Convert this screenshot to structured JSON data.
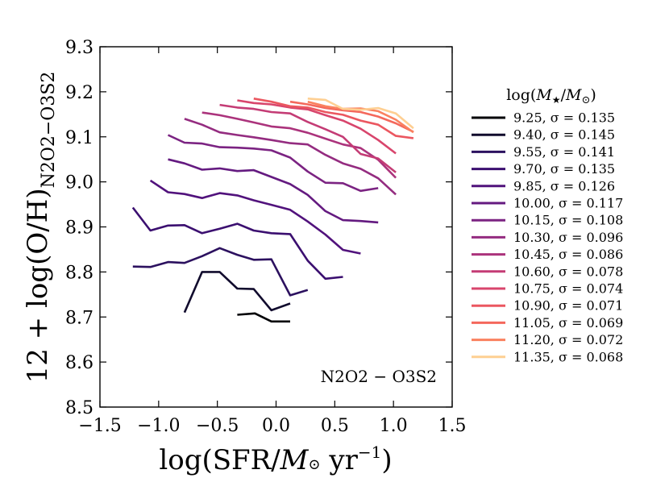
{
  "chart_data": {
    "type": "line",
    "title": "",
    "xlabel": "log(SFR/M⊙ yr⁻¹)",
    "ylabel": "12 + log(O/H)",
    "ylabel_subscript": "N2O2−O3S2",
    "xlim": [
      -1.5,
      1.5
    ],
    "ylim": [
      8.5,
      9.3
    ],
    "xticks": [
      "−1.5",
      "−1.0",
      "−0.5",
      "0.0",
      "0.5",
      "1.0",
      "1.5"
    ],
    "yticks": [
      "8.5",
      "8.6",
      "8.7",
      "8.8",
      "8.9",
      "9.0",
      "9.1",
      "9.2",
      "9.3"
    ],
    "annotation": "N2O2 − O3S2",
    "legend_title": "log(M★/M⊙)",
    "legend_position": "right",
    "series": [
      {
        "name": "9.25,  σ = 0.135",
        "color": "#000004",
        "x": [
          -0.33,
          -0.18,
          -0.04,
          0.12
        ],
        "y": [
          8.705,
          8.708,
          8.69,
          8.69
        ]
      },
      {
        "name": "9.40,  σ = 0.145",
        "color": "#110b2d",
        "x": [
          -0.78,
          -0.63,
          -0.48,
          -0.33,
          -0.19,
          -0.04,
          0.12
        ],
        "y": [
          8.71,
          8.8,
          8.8,
          8.763,
          8.762,
          8.715,
          8.73
        ]
      },
      {
        "name": "9.55,  σ = 0.141",
        "color": "#2c115f",
        "x": [
          -1.22,
          -1.07,
          -0.92,
          -0.78,
          -0.63,
          -0.48,
          -0.33,
          -0.19,
          -0.04,
          0.12,
          0.27
        ],
        "y": [
          8.812,
          8.811,
          8.822,
          8.82,
          8.835,
          8.853,
          8.838,
          8.827,
          8.828,
          8.748,
          8.76
        ]
      },
      {
        "name": "9.70,  σ = 0.135",
        "color": "#3b0f70",
        "x": [
          -1.22,
          -1.07,
          -0.92,
          -0.78,
          -0.63,
          -0.48,
          -0.33,
          -0.19,
          -0.04,
          0.12,
          0.27,
          0.42,
          0.57
        ],
        "y": [
          8.943,
          8.892,
          8.903,
          8.904,
          8.886,
          8.896,
          8.907,
          8.892,
          8.886,
          8.884,
          8.825,
          8.785,
          8.789
        ]
      },
      {
        "name": "9.85,  σ = 0.126",
        "color": "#51127c",
        "x": [
          -1.07,
          -0.92,
          -0.78,
          -0.63,
          -0.48,
          -0.33,
          -0.19,
          -0.04,
          0.12,
          0.27,
          0.42,
          0.57,
          0.72
        ],
        "y": [
          9.003,
          8.977,
          8.973,
          8.964,
          8.975,
          8.97,
          8.959,
          8.949,
          8.938,
          8.912,
          8.883,
          8.849,
          8.841
        ]
      },
      {
        "name": "10.00, σ = 0.117",
        "color": "#641a80",
        "x": [
          -0.92,
          -0.78,
          -0.63,
          -0.48,
          -0.33,
          -0.19,
          -0.04,
          0.12,
          0.27,
          0.42,
          0.57,
          0.72,
          0.87
        ],
        "y": [
          9.05,
          9.041,
          9.027,
          9.03,
          9.024,
          9.026,
          9.011,
          8.995,
          8.971,
          8.935,
          8.915,
          8.913,
          8.91
        ]
      },
      {
        "name": "10.15, σ = 0.108",
        "color": "#7b2382",
        "x": [
          -0.92,
          -0.78,
          -0.63,
          -0.48,
          -0.33,
          -0.19,
          -0.04,
          0.12,
          0.27,
          0.42,
          0.57,
          0.72,
          0.87
        ],
        "y": [
          9.104,
          9.087,
          9.085,
          9.077,
          9.076,
          9.074,
          9.07,
          9.054,
          9.023,
          8.998,
          8.997,
          8.98,
          8.986
        ]
      },
      {
        "name": "10.30, σ = 0.096",
        "color": "#942c80",
        "x": [
          -0.78,
          -0.63,
          -0.48,
          -0.33,
          -0.19,
          -0.04,
          0.12,
          0.27,
          0.42,
          0.57,
          0.72,
          0.87,
          1.02
        ],
        "y": [
          9.14,
          9.127,
          9.11,
          9.104,
          9.099,
          9.093,
          9.086,
          9.083,
          9.06,
          9.041,
          9.029,
          9.008,
          8.972
        ]
      },
      {
        "name": "10.45, σ = 0.086",
        "color": "#ab337c",
        "x": [
          -0.63,
          -0.48,
          -0.33,
          -0.19,
          -0.04,
          0.12,
          0.27,
          0.42,
          0.57,
          0.72,
          0.87,
          1.02
        ],
        "y": [
          9.154,
          9.148,
          9.14,
          9.132,
          9.123,
          9.119,
          9.109,
          9.096,
          9.083,
          9.075,
          9.049,
          9.009
        ]
      },
      {
        "name": "10.60, σ = 0.078",
        "color": "#c43c75",
        "x": [
          -0.48,
          -0.33,
          -0.19,
          -0.04,
          0.12,
          0.27,
          0.42,
          0.57,
          0.72,
          0.87,
          1.02
        ],
        "y": [
          9.171,
          9.165,
          9.162,
          9.155,
          9.152,
          9.133,
          9.117,
          9.1,
          9.062,
          9.052,
          9.021
        ]
      },
      {
        "name": "10.75, σ = 0.074",
        "color": "#d8456c",
        "x": [
          -0.33,
          -0.19,
          -0.04,
          0.12,
          0.27,
          0.42,
          0.57,
          0.72,
          0.87,
          1.02
        ],
        "y": [
          9.181,
          9.175,
          9.172,
          9.165,
          9.161,
          9.148,
          9.136,
          9.118,
          9.093,
          9.063
        ]
      },
      {
        "name": "10.90, σ = 0.071",
        "color": "#eb5760",
        "x": [
          -0.19,
          -0.04,
          0.12,
          0.27,
          0.42,
          0.57,
          0.72,
          0.87,
          1.02,
          1.17
        ],
        "y": [
          9.185,
          9.178,
          9.168,
          9.165,
          9.155,
          9.149,
          9.136,
          9.127,
          9.102,
          9.097
        ]
      },
      {
        "name": "11.05, σ = 0.069",
        "color": "#f4685c",
        "x": [
          0.12,
          0.27,
          0.42,
          0.57,
          0.72,
          0.87,
          1.02,
          1.17
        ],
        "y": [
          9.178,
          9.172,
          9.164,
          9.159,
          9.155,
          9.145,
          9.13,
          9.111
        ]
      },
      {
        "name": "11.20, σ = 0.072",
        "color": "#fa815f",
        "x": [
          0.27,
          0.42,
          0.57,
          0.72,
          0.87,
          1.02,
          1.17
        ],
        "y": [
          9.178,
          9.168,
          9.162,
          9.163,
          9.157,
          9.138,
          9.11
        ]
      },
      {
        "name": "11.35, σ = 0.068",
        "color": "#fecf92",
        "x": [
          0.27,
          0.42,
          0.57,
          0.72,
          0.87,
          1.02,
          1.17
        ],
        "y": [
          9.185,
          9.182,
          9.162,
          9.16,
          9.164,
          9.152,
          9.119
        ]
      }
    ]
  }
}
